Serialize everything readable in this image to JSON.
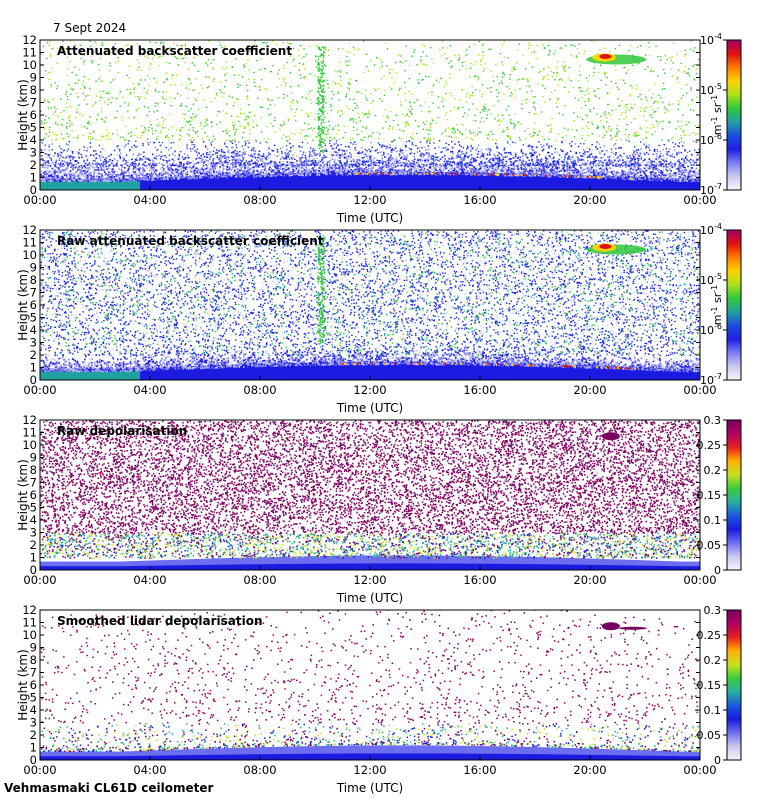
{
  "date": "7 Sept 2024",
  "footer": "Vehmasmaki CL61D ceilometer",
  "colormap": {
    "backscatter": [
      "#f6f6fb",
      "#c9c9ee",
      "#7d7df3",
      "#1e1ee6",
      "#1a4fe0",
      "#21a0a0",
      "#2fc83a",
      "#aee21a",
      "#ffd200",
      "#ff7a00",
      "#e01010",
      "#a0006a"
    ],
    "depol": [
      "#f6f6fb",
      "#c9c9ee",
      "#6d6df0",
      "#1a1ae0",
      "#1a5ae0",
      "#27b0a0",
      "#3ccc3c",
      "#c8e020",
      "#ffb000",
      "#e82020",
      "#b00060",
      "#7a0060"
    ]
  },
  "chart_data": [
    {
      "type": "heatmap",
      "title": "Attenuated backscatter coefficient",
      "xlabel": "Time (UTC)",
      "ylabel": "Height (km)",
      "x_ticks": [
        "00:00",
        "04:00",
        "08:00",
        "12:00",
        "16:00",
        "20:00",
        "00:00"
      ],
      "y_ticks": [
        "0",
        "1",
        "2",
        "3",
        "4",
        "5",
        "6",
        "7",
        "8",
        "9",
        "10",
        "11",
        "12"
      ],
      "ylim": [
        0,
        12
      ],
      "colorbar": {
        "scale": "log",
        "range": [
          1e-07,
          0.0001
        ],
        "units": "m-1 sr-1",
        "ticks": [
          {
            "base": "10",
            "exp": "-4"
          },
          {
            "base": "10",
            "exp": "-5"
          },
          {
            "base": "10",
            "exp": "-6"
          },
          {
            "base": "10",
            "exp": "-7"
          }
        ],
        "unit_parts": {
          "a": "m",
          "a_exp": "-1",
          "b": "sr",
          "b_exp": "-1"
        }
      }
    },
    {
      "type": "heatmap",
      "title": "Raw attenuated backscatter coefficient",
      "xlabel": "Time (UTC)",
      "ylabel": "Height (km)",
      "x_ticks": [
        "00:00",
        "04:00",
        "08:00",
        "12:00",
        "16:00",
        "20:00",
        "00:00"
      ],
      "y_ticks": [
        "0",
        "1",
        "2",
        "3",
        "4",
        "5",
        "6",
        "7",
        "8",
        "9",
        "10",
        "11",
        "12"
      ],
      "ylim": [
        0,
        12
      ],
      "colorbar": {
        "scale": "log",
        "range": [
          1e-07,
          0.0001
        ],
        "units": "m-1 sr-1",
        "ticks": [
          {
            "base": "10",
            "exp": "-4"
          },
          {
            "base": "10",
            "exp": "-5"
          },
          {
            "base": "10",
            "exp": "-6"
          },
          {
            "base": "10",
            "exp": "-7"
          }
        ],
        "unit_parts": {
          "a": "m",
          "a_exp": "-1",
          "b": "sr",
          "b_exp": "-1"
        }
      }
    },
    {
      "type": "heatmap",
      "title": "Raw depolarisation",
      "xlabel": "Time (UTC)",
      "ylabel": "Height (km)",
      "x_ticks": [
        "00:00",
        "04:00",
        "08:00",
        "12:00",
        "16:00",
        "20:00",
        "00:00"
      ],
      "y_ticks": [
        "0",
        "1",
        "2",
        "3",
        "4",
        "5",
        "6",
        "7",
        "8",
        "9",
        "10",
        "11",
        "12"
      ],
      "ylim": [
        0,
        12
      ],
      "colorbar": {
        "scale": "linear",
        "range": [
          0,
          0.3
        ],
        "ticks": [
          "0.3",
          "0.25",
          "0.2",
          "0.15",
          "0.1",
          "0.05",
          "0"
        ]
      }
    },
    {
      "type": "heatmap",
      "title": "Smoothed lidar depolarisation",
      "xlabel": "Time (UTC)",
      "ylabel": "Height (km)",
      "x_ticks": [
        "00:00",
        "04:00",
        "08:00",
        "12:00",
        "16:00",
        "20:00",
        "00:00"
      ],
      "y_ticks": [
        "0",
        "1",
        "2",
        "3",
        "4",
        "5",
        "6",
        "7",
        "8",
        "9",
        "10",
        "11",
        "12"
      ],
      "ylim": [
        0,
        12
      ],
      "colorbar": {
        "scale": "linear",
        "range": [
          0,
          0.3
        ],
        "ticks": [
          "0.3",
          "0.25",
          "0.2",
          "0.15",
          "0.1",
          "0.05",
          "0"
        ]
      }
    }
  ]
}
